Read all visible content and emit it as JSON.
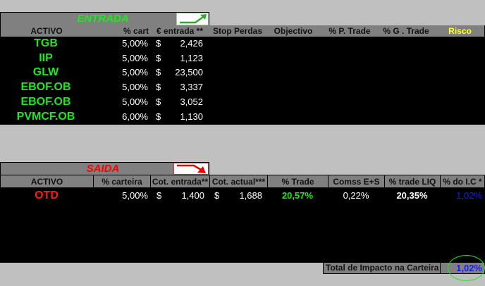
{
  "entrada": {
    "title": "ENTRADA",
    "title_color": "#1ee81e",
    "headers": [
      "ACTIVO",
      "% cart",
      "€  entrada **",
      "Stop Perdas",
      "Objectivo",
      "% P. Trade",
      "% G . Trade",
      "Risco"
    ],
    "rows": [
      {
        "activo": "TGB",
        "cart": "5,00%",
        "cur": "$",
        "entrada": "2,426"
      },
      {
        "activo": "IIP",
        "cart": "5,00%",
        "cur": "$",
        "entrada": "1,123"
      },
      {
        "activo": "GLW",
        "cart": "5,00%",
        "cur": "$",
        "entrada": "23,500"
      },
      {
        "activo": "EBOF.OB",
        "cart": "5,00%",
        "cur": "$",
        "entrada": "3,337"
      },
      {
        "activo": "EBOF.OB",
        "cart": "5,00%",
        "cur": "$",
        "entrada": "3,052"
      },
      {
        "activo": "PVMCF.OB",
        "cart": "6,00%",
        "cur": "$",
        "entrada": "1,130"
      }
    ]
  },
  "saida": {
    "title": "SAIDA",
    "title_color": "#ff0000",
    "headers": [
      "ACTIVO",
      "% carteira",
      "Cot. entrada**",
      "Cot. actual***",
      "% Trade",
      "Comss E+S",
      "% trade LIQ",
      "% do I.C *"
    ],
    "rows": [
      {
        "activo": "OTD",
        "carteira": "5,00%",
        "cur1": "$",
        "entrada": "1,400",
        "cur2": "$",
        "actual": "1,688",
        "trade": "20,57%",
        "comss": "0,22%",
        "liq": "20,35%",
        "ic": "1,02%"
      }
    ]
  },
  "total": {
    "label": "Total de Impacto na Carteira",
    "value": "1,02%"
  }
}
